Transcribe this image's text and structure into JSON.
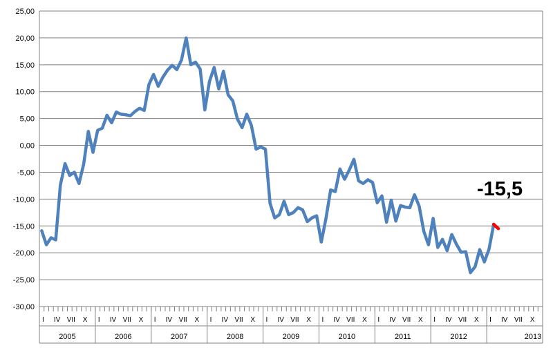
{
  "chart_data": {
    "type": "line",
    "title": "",
    "xlabel": "",
    "ylabel": "",
    "ylim": [
      -30,
      25
    ],
    "ytick_values": [
      25,
      20,
      15,
      10,
      5,
      0,
      -5,
      -10,
      -15,
      -20,
      -25,
      -30
    ],
    "ytick_labels": [
      "25,00",
      "20,00",
      "15,00",
      "10,00",
      "5,00",
      "0,00",
      "-5,00",
      "-10,00",
      "-15,00",
      "-20,00",
      "-25,00",
      "-30,00"
    ],
    "grid": true,
    "month_tick_labels": [
      "I",
      "IV",
      "VII",
      "X"
    ],
    "years": [
      "2005",
      "2006",
      "2007",
      "2008",
      "2009",
      "2010",
      "2011",
      "2012",
      "2013"
    ],
    "annotation": "-15,5",
    "colors": {
      "main_line": "#4f81bd",
      "last_segment": "#ff0000"
    },
    "series": [
      {
        "values": [
          -15.9,
          -18.5,
          -17.2,
          -17.6,
          -7.4,
          -3.4,
          -5.6,
          -5.0,
          -7.1,
          -3.5,
          2.6,
          -1.3,
          2.8,
          3.2,
          5.6,
          4.2,
          6.2,
          5.8,
          5.7,
          5.5,
          6.3,
          6.9,
          6.5,
          11.3,
          13.2,
          11.0,
          12.7,
          14.0,
          14.9,
          14.1,
          15.9,
          20.0,
          15.0,
          15.5,
          14.2,
          6.6,
          11.9,
          14.5,
          10.5,
          13.8,
          9.4,
          8.3,
          4.9,
          3.3,
          5.8,
          3.7,
          -0.7,
          -0.3,
          -0.7,
          -10.8,
          -13.5,
          -12.9,
          -10.4,
          -12.9,
          -12.5,
          -11.6,
          -12.0,
          -14.2,
          -13.5,
          -13.1,
          -18.0,
          -13.6,
          -8.3,
          -8.6,
          -4.4,
          -6.3,
          -4.6,
          -2.6,
          -6.6,
          -7.1,
          -6.4,
          -6.9,
          -10.7,
          -9.4,
          -14.3,
          -10.2,
          -14.1,
          -11.2,
          -11.5,
          -11.6,
          -9.2,
          -11.3,
          -16.0,
          -18.5,
          -13.6,
          -19.0,
          -17.5,
          -19.6,
          -16.6,
          -18.4,
          -19.9,
          -19.8,
          -23.7,
          -22.6,
          -19.4,
          -21.7,
          -19.3,
          -14.7,
          -15.5
        ],
        "start": "2005-01"
      }
    ]
  }
}
